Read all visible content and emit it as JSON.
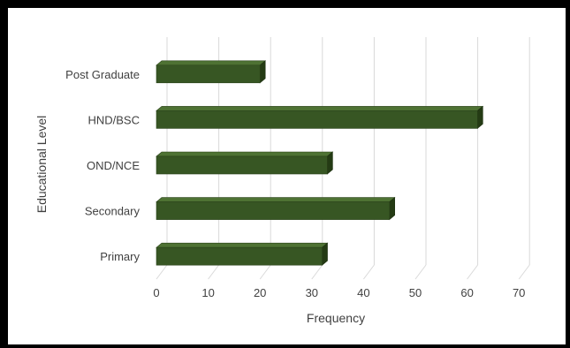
{
  "chart_data": {
    "type": "bar",
    "orientation": "horizontal",
    "style": "3d",
    "categories": [
      "Post Graduate",
      "HND/BSC",
      "OND/NCE",
      "Secondary",
      "Primary"
    ],
    "values": [
      20,
      62,
      33,
      45,
      32
    ],
    "title": "",
    "xlabel": "Frequency",
    "ylabel": "Educational Level",
    "xlim": [
      0,
      70
    ],
    "xticks": [
      "0",
      "10",
      "20",
      "30",
      "40",
      "50",
      "60",
      "70"
    ],
    "grid": true,
    "legend": "none",
    "bar_color": "#375623"
  }
}
